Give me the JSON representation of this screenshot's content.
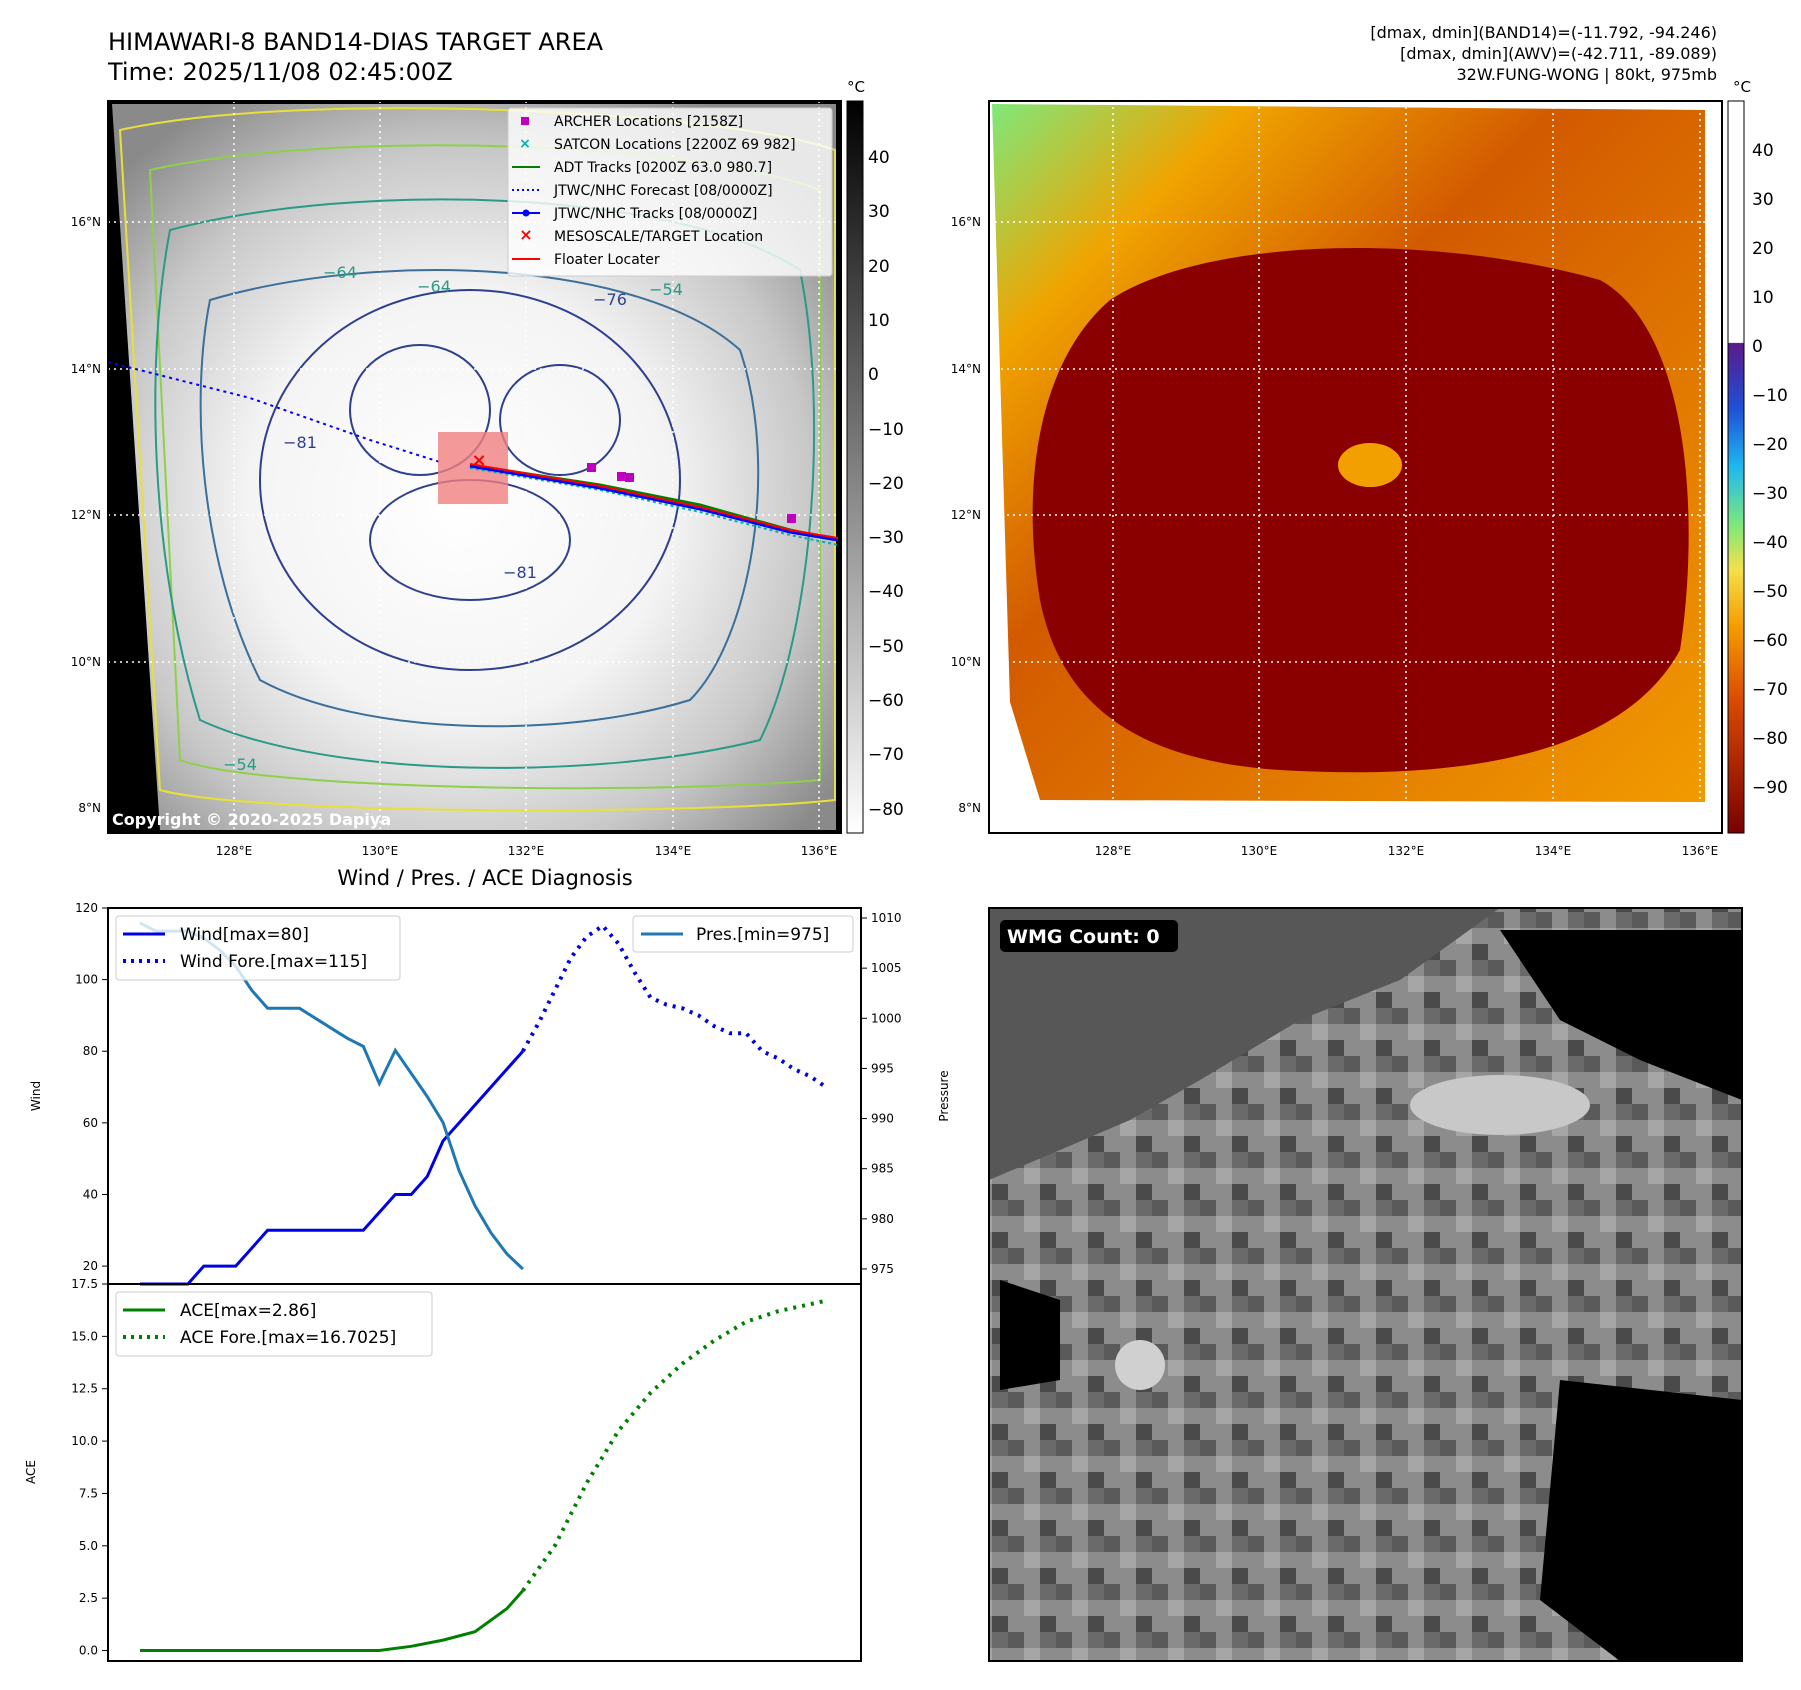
{
  "header": {
    "title_line1": "HIMAWARI-8 BAND14-DIAS TARGET AREA",
    "title_line2": "Time: 2025/11/08 02:45:00Z",
    "stats_line1": "[dmax, dmin](BAND14)=(-11.792, -94.246)",
    "stats_line2": "[dmax, dmin](AWV)=(-42.711, -89.089)",
    "stats_line3": "32W.FUNG-WONG | 80kt, 975mb"
  },
  "ir_panel": {
    "copyright": "Copyright © 2020-2025 Dapiya",
    "lat_labels": [
      "16°N",
      "14°N",
      "12°N",
      "10°N",
      "8°N"
    ],
    "lon_labels": [
      "128°E",
      "130°E",
      "132°E",
      "134°E",
      "136°E"
    ],
    "colorbar_unit": "°C",
    "colorbar_ticks": [
      "40",
      "30",
      "20",
      "10",
      "0",
      "−10",
      "−20",
      "−30",
      "−40",
      "−50",
      "−60",
      "−70",
      "−80"
    ],
    "contour_labels": [
      "−76",
      "−81",
      "−81",
      "−64",
      "−54",
      "−54",
      "−64"
    ],
    "legend": [
      {
        "label": "ARCHER Locations [2158Z]",
        "color": "#c000c0"
      },
      {
        "label": "SATCON Locations [2200Z 69 982]",
        "color": "#00b0b0"
      },
      {
        "label": "ADT Tracks [0200Z 63.0 980.7]",
        "color": "#008000"
      },
      {
        "label": "JTWC/NHC Forecast [08/0000Z]",
        "color": "#0000ff"
      },
      {
        "label": "JTWC/NHC Tracks [08/0000Z]",
        "color": "#0000ff"
      },
      {
        "label": "MESOSCALE/TARGET Location",
        "color": "#ff0000"
      },
      {
        "label": "Floater Locater",
        "color": "#ff0000"
      }
    ]
  },
  "awv_panel": {
    "lat_labels": [
      "16°N",
      "14°N",
      "12°N",
      "10°N",
      "8°N"
    ],
    "lon_labels": [
      "128°E",
      "130°E",
      "132°E",
      "134°E",
      "136°E"
    ],
    "colorbar_unit": "°C",
    "colorbar_ticks": [
      "40",
      "30",
      "20",
      "10",
      "0",
      "−10",
      "−20",
      "−30",
      "−40",
      "−50",
      "−60",
      "−70",
      "−80",
      "−90"
    ]
  },
  "wmg_panel": {
    "badge": "WMG Count: 0"
  },
  "chart_data": [
    {
      "type": "line",
      "title": "Wind / Pres. / ACE Diagnosis",
      "ylabel": "Wind",
      "ylabel_right": "Pressure",
      "ylim": [
        15,
        120
      ],
      "ylim_right": [
        973.5,
        1011
      ],
      "y_ticks": [
        "120",
        "100",
        "80",
        "60",
        "40",
        "20"
      ],
      "y_ticks_right": [
        "1010",
        "1005",
        "1000",
        "995",
        "990",
        "985",
        "980",
        "975"
      ],
      "legend_left": [
        "Wind[max=80]",
        "Wind Fore.[max=115]"
      ],
      "legend_right": [
        "Pres.[min=975]"
      ],
      "series": [
        {
          "name": "Wind[max=80]",
          "axis": "left",
          "style": "solid",
          "color": "#0000e6",
          "x": [
            0,
            1,
            2,
            3,
            4,
            5,
            6,
            7,
            8,
            9,
            10,
            11,
            12,
            13,
            14,
            15,
            16,
            17,
            18,
            19,
            20,
            21,
            22,
            23,
            24
          ],
          "values": [
            15,
            15,
            15,
            15,
            20,
            20,
            20,
            25,
            30,
            30,
            30,
            30,
            30,
            30,
            30,
            35,
            40,
            40,
            45,
            55,
            60,
            65,
            70,
            75,
            80
          ]
        },
        {
          "name": "Wind Fore.[max=115]",
          "axis": "left",
          "style": "dotted",
          "color": "#0000e6",
          "x": [
            24,
            25,
            26,
            27,
            28,
            29,
            30,
            31,
            32,
            33,
            34,
            35,
            36,
            37,
            38,
            39,
            40,
            41,
            42,
            43
          ],
          "values": [
            80,
            88,
            97,
            106,
            112,
            115,
            110,
            102,
            95,
            93,
            92,
            90,
            87,
            85,
            85,
            80,
            78,
            75,
            73,
            70
          ]
        },
        {
          "name": "Pres.[min=975]",
          "axis": "right",
          "style": "solid",
          "color": "#1f77b4",
          "x": [
            0,
            1,
            2,
            3,
            4,
            5,
            6,
            7,
            8,
            9,
            10,
            11,
            12,
            13,
            14,
            15,
            16,
            17,
            18,
            19,
            20,
            21,
            22,
            23,
            24
          ],
          "values": [
            1009.5,
            1008.7,
            1008.7,
            1008.7,
            1008,
            1006.8,
            1005.2,
            1002.8,
            1001,
            1001,
            1001,
            1000,
            999,
            998,
            997.2,
            993.5,
            996.8,
            994.5,
            992.2,
            989.6,
            984.8,
            981.3,
            978.6,
            976.5,
            975
          ]
        }
      ]
    },
    {
      "type": "line",
      "ylabel": "ACE",
      "ylim": [
        -0.5,
        17.5
      ],
      "y_ticks": [
        "17.5",
        "15.0",
        "12.5",
        "10.0",
        "7.5",
        "5.0",
        "2.5",
        "0.0"
      ],
      "legend": [
        "ACE[max=2.86]",
        "ACE Fore.[max=16.7025]"
      ],
      "series": [
        {
          "name": "ACE[max=2.86]",
          "style": "solid",
          "color": "#008000",
          "x": [
            0,
            8,
            15,
            17,
            19,
            21,
            23,
            24
          ],
          "values": [
            0,
            0,
            0,
            0.2,
            0.5,
            0.9,
            2.0,
            2.86
          ]
        },
        {
          "name": "ACE Fore.[max=16.7025]",
          "style": "dotted",
          "color": "#008000",
          "x": [
            24,
            26,
            28,
            30,
            32,
            34,
            36,
            38,
            40,
            43
          ],
          "values": [
            2.86,
            5.0,
            8.0,
            10.5,
            12.3,
            13.7,
            14.8,
            15.7,
            16.2,
            16.7025
          ]
        }
      ]
    }
  ]
}
